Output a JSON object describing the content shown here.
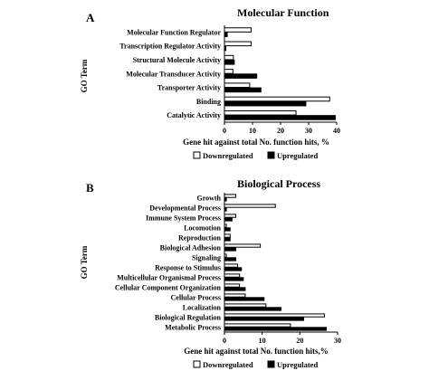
{
  "chart_data": [
    {
      "type": "bar",
      "orientation": "horizontal",
      "panel_label": "A",
      "title": "Molecular Function",
      "ylabel": "GO Term",
      "xlabel": "Gene hit against total No. function hits, %",
      "xlim": [
        0,
        40
      ],
      "xticks": [
        0,
        10,
        20,
        30,
        40
      ],
      "categories": [
        "Catalytic Activity",
        "Binding",
        "Transporter Activity",
        "Molecular Transducer Activity",
        "Structural Molecule Activity",
        "Transcription Regulator Activity",
        "Molecular Function Regulator"
      ],
      "series": [
        {
          "name": "Downregulated",
          "color": "#ffffff",
          "values": [
            25.5,
            37.5,
            9,
            3,
            3.2,
            9.5,
            9.5
          ]
        },
        {
          "name": "Upregulated",
          "color": "#000000",
          "values": [
            39.5,
            29,
            13,
            11.5,
            3.5,
            0.5,
            1
          ]
        }
      ],
      "legend": "bottom"
    },
    {
      "type": "bar",
      "orientation": "horizontal",
      "panel_label": "B",
      "title": "Biological Process",
      "ylabel": "GO Term",
      "xlabel": "Gene hit against total No. function hits,%",
      "xlim": [
        0,
        30
      ],
      "xticks": [
        0,
        10,
        20,
        30
      ],
      "categories": [
        "Metabolic Process",
        "Biological Regulation",
        "Localization",
        "Cellular Process",
        "Cellular Component Organization",
        "Multicellular Organismal Process",
        "Response to Stimulus",
        "Signaling",
        "Biological Adhesion",
        "Reproduction",
        "Locomotion",
        "Immune System Process",
        "Developmental Process",
        "Growth"
      ],
      "series": [
        {
          "name": "Downregulated",
          "color": "#ffffff",
          "values": [
            17.5,
            26.5,
            11,
            5.5,
            4,
            4,
            3.5,
            0.5,
            9.5,
            1.5,
            0.5,
            3,
            13.5,
            3
          ]
        },
        {
          "name": "Upregulated",
          "color": "#000000",
          "values": [
            27,
            21,
            15,
            10.5,
            5.5,
            5,
            4.5,
            3,
            3,
            1.5,
            1.5,
            2,
            0.5,
            0.5
          ]
        }
      ],
      "legend": "bottom"
    }
  ]
}
